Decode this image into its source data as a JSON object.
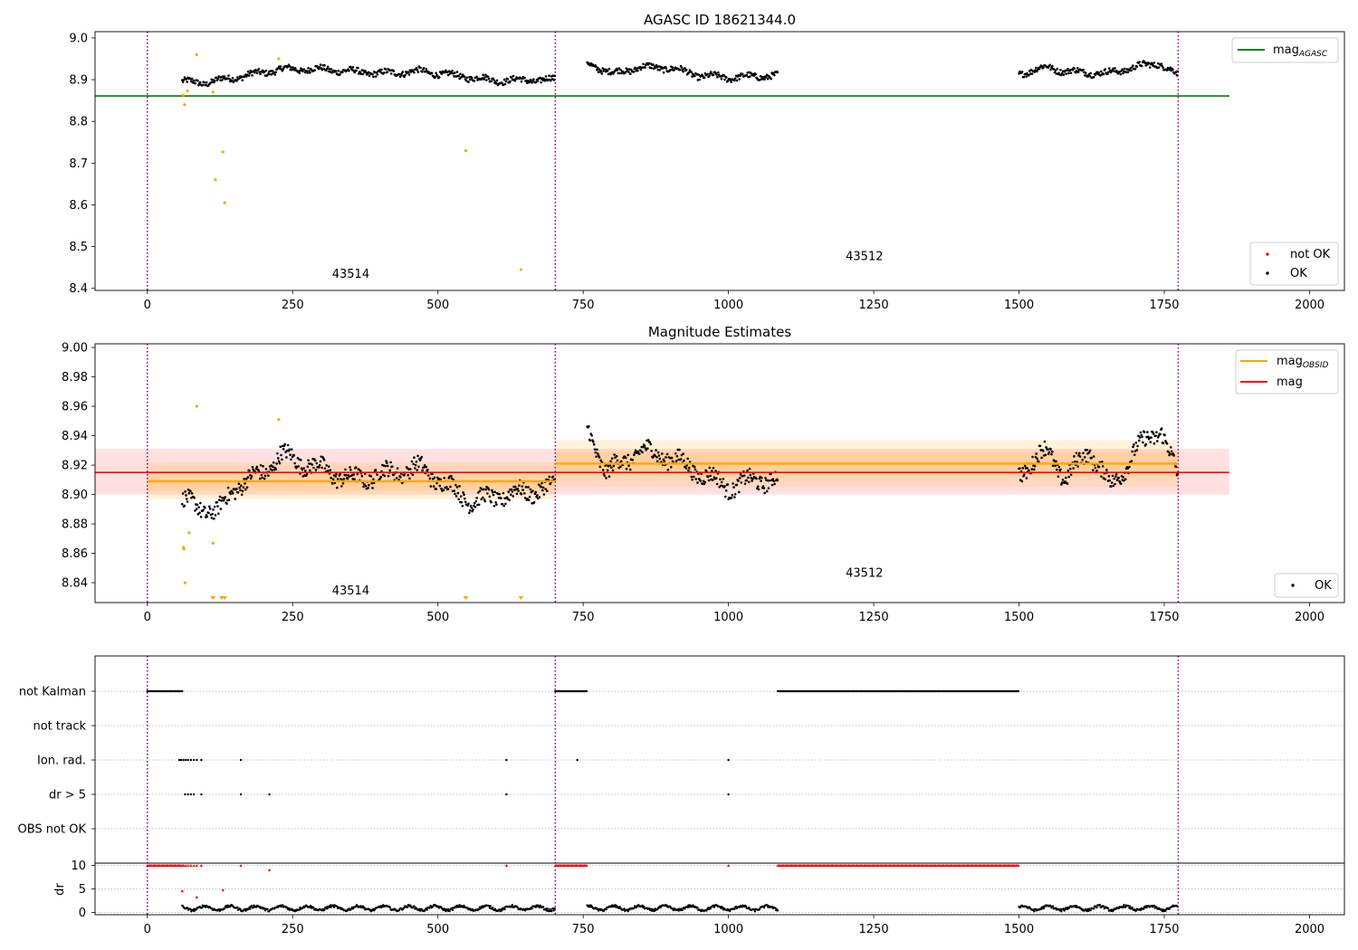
{
  "chart_data": [
    {
      "type": "scatter",
      "title": "AGASC ID 18621344.0",
      "xlim": [
        -90,
        2060
      ],
      "ylim": [
        8.395,
        9.015
      ],
      "xticks": [
        0,
        250,
        500,
        750,
        1000,
        1250,
        1500,
        1750,
        2000
      ],
      "yticks": [
        8.4,
        8.5,
        8.6,
        8.7,
        8.8,
        8.9,
        9.0
      ],
      "ytick_labels": [
        "8.4",
        "8.5",
        "8.6",
        "8.7",
        "8.8",
        "8.9",
        "9.0"
      ],
      "obs_boundaries": [
        0,
        702,
        1774
      ],
      "obs_labels": [
        {
          "text": "43514",
          "x": 350,
          "y": 8.425
        },
        {
          "text": "43512",
          "x": 1234,
          "y": 8.468
        }
      ],
      "hlines": [
        {
          "name": "mag_AGASC",
          "y": 8.861,
          "x0": -90,
          "x1": 1862,
          "color": "#008000"
        }
      ],
      "ok_segments": [
        {
          "x0": 60,
          "x1": 702,
          "anchors": [
            [
              60,
              8.895
            ],
            [
              100,
              8.893
            ],
            [
              150,
              8.905
            ],
            [
              230,
              8.925
            ],
            [
              300,
              8.925
            ],
            [
              400,
              8.915
            ],
            [
              470,
              8.92
            ],
            [
              530,
              8.91
            ],
            [
              600,
              8.898
            ],
            [
              702,
              8.9
            ]
          ]
        },
        {
          "x0": 757,
          "x1": 1085,
          "anchors": [
            [
              757,
              8.94
            ],
            [
              800,
              8.915
            ],
            [
              850,
              8.93
            ],
            [
              900,
              8.928
            ],
            [
              950,
              8.91
            ],
            [
              1000,
              8.905
            ],
            [
              1085,
              8.91
            ]
          ]
        },
        {
          "x0": 1500,
          "x1": 1774,
          "anchors": [
            [
              1500,
              8.915
            ],
            [
              1550,
              8.93
            ],
            [
              1580,
              8.92
            ],
            [
              1650,
              8.915
            ],
            [
              1700,
              8.93
            ],
            [
              1740,
              8.94
            ],
            [
              1774,
              8.91
            ]
          ]
        }
      ],
      "not_ok_points": [
        [
          62,
          8.863
        ],
        [
          64,
          8.84
        ],
        [
          69,
          8.873
        ],
        [
          85,
          8.96
        ],
        [
          113,
          8.87
        ],
        [
          117,
          8.66
        ],
        [
          130,
          8.727
        ],
        [
          133,
          8.605
        ],
        [
          226,
          8.95
        ],
        [
          548,
          8.73
        ],
        [
          643,
          8.445
        ]
      ],
      "legend_top": [
        {
          "label": "mag",
          "sub": "AGASC",
          "color": "#008000"
        }
      ],
      "legend_bottom": [
        {
          "label": "not OK",
          "color": "#ff0000"
        },
        {
          "label": "OK",
          "color": "#000000"
        }
      ]
    },
    {
      "type": "scatter",
      "title": "Magnitude Estimates",
      "xlim": [
        -90,
        2060
      ],
      "ylim": [
        8.8265,
        9.0025
      ],
      "xticks": [
        0,
        250,
        500,
        750,
        1000,
        1250,
        1500,
        1750,
        2000
      ],
      "yticks": [
        8.84,
        8.86,
        8.88,
        8.9,
        8.92,
        8.94,
        8.96,
        8.98,
        9.0
      ],
      "ytick_labels": [
        "8.84",
        "8.86",
        "8.88",
        "8.90",
        "8.92",
        "8.94",
        "8.96",
        "8.98",
        "9.00"
      ],
      "obs_boundaries": [
        0,
        702,
        1774
      ],
      "obs_labels": [
        {
          "text": "43514",
          "x": 350,
          "y": 8.832
        },
        {
          "text": "43512",
          "x": 1234,
          "y": 8.844
        }
      ],
      "mag_band": {
        "x0": -90,
        "x1": 1862,
        "y0": 8.9,
        "y1": 8.931,
        "mean": 8.915,
        "color": "#ff0000"
      },
      "obsid_levels": [
        {
          "x0": 0,
          "x1": 702,
          "mean": 8.909,
          "y0": 8.897,
          "y1": 8.922,
          "inner0": 8.903,
          "inner1": 8.915
        },
        {
          "x0": 702,
          "x1": 1774,
          "mean": 8.921,
          "y0": 8.905,
          "y1": 8.937,
          "inner0": 8.912,
          "inner1": 8.929
        }
      ],
      "ok_segments": [
        {
          "x0": 60,
          "x1": 702,
          "anchors": [
            [
              60,
              8.895
            ],
            [
              90,
              8.892
            ],
            [
              120,
              8.887
            ],
            [
              150,
              8.905
            ],
            [
              200,
              8.915
            ],
            [
              230,
              8.927
            ],
            [
              280,
              8.92
            ],
            [
              350,
              8.91
            ],
            [
              420,
              8.915
            ],
            [
              470,
              8.918
            ],
            [
              520,
              8.905
            ],
            [
              560,
              8.895
            ],
            [
              620,
              8.9
            ],
            [
              702,
              8.905
            ]
          ],
          "spread": 0.011
        },
        {
          "x0": 757,
          "x1": 1085,
          "anchors": [
            [
              757,
              8.945
            ],
            [
              790,
              8.915
            ],
            [
              850,
              8.93
            ],
            [
              900,
              8.925
            ],
            [
              950,
              8.915
            ],
            [
              1000,
              8.905
            ],
            [
              1050,
              8.91
            ],
            [
              1085,
              8.91
            ]
          ],
          "spread": 0.011
        },
        {
          "x0": 1500,
          "x1": 1774,
          "anchors": [
            [
              1500,
              8.915
            ],
            [
              1550,
              8.93
            ],
            [
              1580,
              8.91
            ],
            [
              1620,
              8.93
            ],
            [
              1660,
              8.905
            ],
            [
              1700,
              8.93
            ],
            [
              1745,
              8.945
            ],
            [
              1774,
              8.91
            ]
          ],
          "spread": 0.011
        }
      ],
      "not_ok_points": [
        [
          62,
          8.864
        ],
        [
          63,
          8.863
        ],
        [
          65,
          8.84
        ],
        [
          72,
          8.874
        ],
        [
          85,
          8.96
        ],
        [
          113,
          8.867
        ],
        [
          226,
          8.951
        ]
      ],
      "below_markers": [
        113,
        128,
        133,
        548,
        643
      ],
      "legend_top": [
        {
          "label": "mag",
          "sub": "OBSID",
          "color": "#ffa500"
        },
        {
          "label": "mag",
          "sub": "",
          "color": "#ff0000"
        }
      ],
      "legend_bottom": [
        {
          "label": "OK",
          "color": "#000000"
        }
      ]
    },
    {
      "type": "scatter",
      "title": "",
      "xlim": [
        -90,
        2060
      ],
      "xticks": [
        0,
        250,
        500,
        750,
        1000,
        1250,
        1500,
        1750,
        2000
      ],
      "obs_boundaries": [
        0,
        702,
        1774
      ],
      "flag_rows": [
        {
          "label": "not Kalman",
          "segments": [
            [
              0,
              60
            ],
            [
              702,
              757
            ],
            [
              1085,
              1500
            ]
          ],
          "points": []
        },
        {
          "label": "not track",
          "segments": [],
          "points": []
        },
        {
          "label": "Ion. rad.",
          "segments": [],
          "points": [
            55,
            58,
            62,
            66,
            70,
            75,
            80,
            85,
            93,
            161,
            618,
            740,
            1000
          ]
        },
        {
          "label": "dr > 5",
          "segments": [],
          "points": [
            65,
            70,
            75,
            80,
            93,
            161,
            210,
            618,
            1000
          ]
        },
        {
          "label": "OBS not OK",
          "segments": [],
          "points": []
        }
      ],
      "dr_ylim": [
        -0.5,
        10.5
      ],
      "dr_yticks": [
        0,
        5,
        10
      ],
      "dr_ytick_labels": [
        "0",
        "5",
        "10"
      ],
      "dr_ylabel": "dr",
      "dr_capped_segments": [
        [
          0,
          60
        ],
        [
          702,
          757
        ],
        [
          1085,
          1500
        ]
      ],
      "dr_capped_points": [
        62,
        66,
        70,
        75,
        80,
        85,
        93,
        161,
        618,
        1000
      ],
      "dr_red_points": [
        [
          60,
          4.5
        ],
        [
          85,
          3.2
        ],
        [
          130,
          4.7
        ],
        [
          210,
          9.0
        ]
      ],
      "dr_ok_segments": [
        [
          60,
          702
        ],
        [
          757,
          1085
        ],
        [
          1500,
          1774
        ]
      ]
    }
  ]
}
